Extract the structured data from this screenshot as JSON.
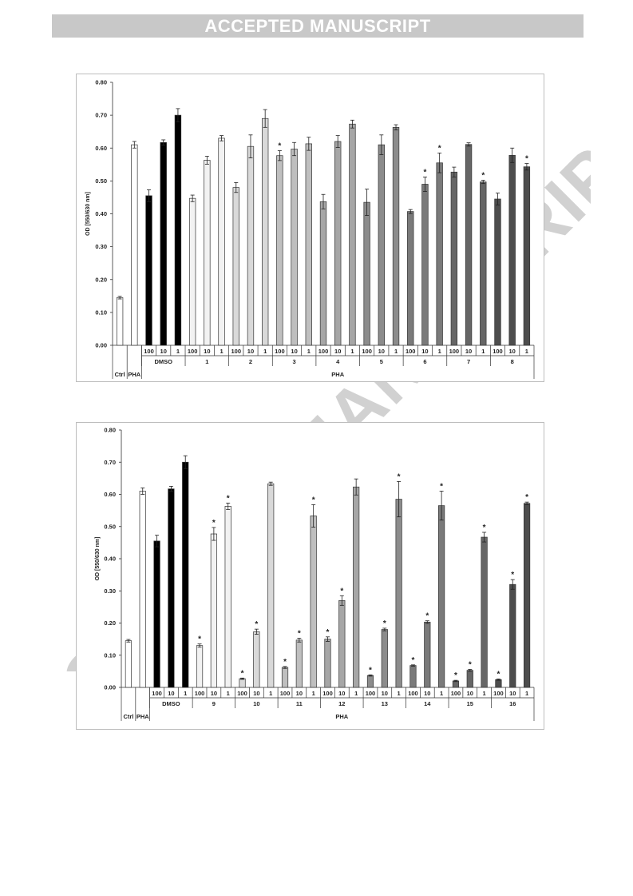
{
  "header": {
    "banner": "ACCEPTED MANUSCRIPT"
  },
  "watermark": "ACCEPTED MANUSCRIPT",
  "chart_data": [
    {
      "type": "bar",
      "ylabel": "OD [550/630 nm]",
      "ylim": [
        0,
        0.8
      ],
      "yticks": [
        "0.00",
        "0.10",
        "0.20",
        "0.30",
        "0.40",
        "0.50",
        "0.60",
        "0.70",
        "0.80"
      ],
      "group_labels": [
        "DMSO",
        "1",
        "2",
        "3",
        "4",
        "5",
        "6",
        "7",
        "8"
      ],
      "super_label": "PHA",
      "ctrl_labels": [
        "Ctrl",
        "PHA"
      ],
      "bars": [
        {
          "group": "Ctrl",
          "dose": "",
          "value": 0.145,
          "err": 0.004,
          "fill": "#ffffff",
          "sig": false
        },
        {
          "group": "PHA",
          "dose": "",
          "value": 0.61,
          "err": 0.01,
          "fill": "#ffffff",
          "sig": false
        },
        {
          "group": "DMSO",
          "dose": "100",
          "value": 0.455,
          "err": 0.018,
          "fill": "#000000",
          "sig": false
        },
        {
          "group": "DMSO",
          "dose": "10",
          "value": 0.617,
          "err": 0.008,
          "fill": "#000000",
          "sig": false
        },
        {
          "group": "DMSO",
          "dose": "1",
          "value": 0.7,
          "err": 0.02,
          "fill": "#000000",
          "sig": false
        },
        {
          "group": "1",
          "dose": "100",
          "value": 0.447,
          "err": 0.01,
          "fill": "#f2f2f2",
          "sig": false
        },
        {
          "group": "1",
          "dose": "10",
          "value": 0.563,
          "err": 0.012,
          "fill": "#f2f2f2",
          "sig": false
        },
        {
          "group": "1",
          "dose": "1",
          "value": 0.63,
          "err": 0.008,
          "fill": "#f2f2f2",
          "sig": false
        },
        {
          "group": "2",
          "dose": "100",
          "value": 0.48,
          "err": 0.015,
          "fill": "#d9d9d9",
          "sig": false
        },
        {
          "group": "2",
          "dose": "10",
          "value": 0.605,
          "err": 0.035,
          "fill": "#d9d9d9",
          "sig": false
        },
        {
          "group": "2",
          "dose": "1",
          "value": 0.69,
          "err": 0.027,
          "fill": "#d9d9d9",
          "sig": false
        },
        {
          "group": "3",
          "dose": "100",
          "value": 0.577,
          "err": 0.015,
          "fill": "#bfbfbf",
          "sig": true
        },
        {
          "group": "3",
          "dose": "10",
          "value": 0.597,
          "err": 0.02,
          "fill": "#bfbfbf",
          "sig": false
        },
        {
          "group": "3",
          "dose": "1",
          "value": 0.613,
          "err": 0.02,
          "fill": "#bfbfbf",
          "sig": false
        },
        {
          "group": "4",
          "dose": "100",
          "value": 0.437,
          "err": 0.022,
          "fill": "#a6a6a6",
          "sig": false
        },
        {
          "group": "4",
          "dose": "10",
          "value": 0.62,
          "err": 0.018,
          "fill": "#a6a6a6",
          "sig": false
        },
        {
          "group": "4",
          "dose": "1",
          "value": 0.673,
          "err": 0.012,
          "fill": "#a6a6a6",
          "sig": false
        },
        {
          "group": "5",
          "dose": "100",
          "value": 0.435,
          "err": 0.04,
          "fill": "#8c8c8c",
          "sig": false
        },
        {
          "group": "5",
          "dose": "10",
          "value": 0.61,
          "err": 0.03,
          "fill": "#8c8c8c",
          "sig": false
        },
        {
          "group": "5",
          "dose": "1",
          "value": 0.663,
          "err": 0.008,
          "fill": "#8c8c8c",
          "sig": false
        },
        {
          "group": "6",
          "dose": "100",
          "value": 0.407,
          "err": 0.006,
          "fill": "#7a7a7a",
          "sig": false
        },
        {
          "group": "6",
          "dose": "10",
          "value": 0.49,
          "err": 0.022,
          "fill": "#7a7a7a",
          "sig": true
        },
        {
          "group": "6",
          "dose": "1",
          "value": 0.555,
          "err": 0.03,
          "fill": "#7a7a7a",
          "sig": true
        },
        {
          "group": "7",
          "dose": "100",
          "value": 0.527,
          "err": 0.015,
          "fill": "#666666",
          "sig": false
        },
        {
          "group": "7",
          "dose": "10",
          "value": 0.611,
          "err": 0.005,
          "fill": "#666666",
          "sig": false
        },
        {
          "group": "7",
          "dose": "1",
          "value": 0.497,
          "err": 0.005,
          "fill": "#666666",
          "sig": true
        },
        {
          "group": "8",
          "dose": "100",
          "value": 0.445,
          "err": 0.018,
          "fill": "#4d4d4d",
          "sig": false
        },
        {
          "group": "8",
          "dose": "10",
          "value": 0.578,
          "err": 0.022,
          "fill": "#4d4d4d",
          "sig": false
        },
        {
          "group": "8",
          "dose": "1",
          "value": 0.543,
          "err": 0.01,
          "fill": "#4d4d4d",
          "sig": true
        }
      ]
    },
    {
      "type": "bar",
      "ylabel": "OD [550/630 nm]",
      "ylim": [
        0,
        0.8
      ],
      "yticks": [
        "0.00",
        "0.10",
        "0.20",
        "0.30",
        "0.40",
        "0.50",
        "0.60",
        "0.70",
        "0.80"
      ],
      "group_labels": [
        "DMSO",
        "9",
        "10",
        "11",
        "12",
        "13",
        "14",
        "15",
        "16"
      ],
      "super_label": "PHA",
      "ctrl_labels": [
        "Ctrl",
        "PHA"
      ],
      "bars": [
        {
          "group": "Ctrl",
          "dose": "",
          "value": 0.145,
          "err": 0.004,
          "fill": "#ffffff",
          "sig": false
        },
        {
          "group": "PHA",
          "dose": "",
          "value": 0.61,
          "err": 0.01,
          "fill": "#ffffff",
          "sig": false
        },
        {
          "group": "DMSO",
          "dose": "100",
          "value": 0.455,
          "err": 0.018,
          "fill": "#000000",
          "sig": false
        },
        {
          "group": "DMSO",
          "dose": "10",
          "value": 0.617,
          "err": 0.008,
          "fill": "#000000",
          "sig": false
        },
        {
          "group": "DMSO",
          "dose": "1",
          "value": 0.7,
          "err": 0.02,
          "fill": "#000000",
          "sig": false
        },
        {
          "group": "9",
          "dose": "100",
          "value": 0.13,
          "err": 0.005,
          "fill": "#f2f2f2",
          "sig": true
        },
        {
          "group": "9",
          "dose": "10",
          "value": 0.477,
          "err": 0.02,
          "fill": "#f2f2f2",
          "sig": true
        },
        {
          "group": "9",
          "dose": "1",
          "value": 0.563,
          "err": 0.01,
          "fill": "#f2f2f2",
          "sig": true
        },
        {
          "group": "10",
          "dose": "100",
          "value": 0.027,
          "err": 0.002,
          "fill": "#d9d9d9",
          "sig": true
        },
        {
          "group": "10",
          "dose": "10",
          "value": 0.173,
          "err": 0.008,
          "fill": "#d9d9d9",
          "sig": true
        },
        {
          "group": "10",
          "dose": "1",
          "value": 0.633,
          "err": 0.005,
          "fill": "#d9d9d9",
          "sig": false
        },
        {
          "group": "11",
          "dose": "100",
          "value": 0.062,
          "err": 0.003,
          "fill": "#bfbfbf",
          "sig": true
        },
        {
          "group": "11",
          "dose": "10",
          "value": 0.147,
          "err": 0.006,
          "fill": "#bfbfbf",
          "sig": true
        },
        {
          "group": "11",
          "dose": "1",
          "value": 0.533,
          "err": 0.035,
          "fill": "#bfbfbf",
          "sig": true
        },
        {
          "group": "12",
          "dose": "100",
          "value": 0.15,
          "err": 0.007,
          "fill": "#a6a6a6",
          "sig": true
        },
        {
          "group": "12",
          "dose": "10",
          "value": 0.27,
          "err": 0.015,
          "fill": "#a6a6a6",
          "sig": true
        },
        {
          "group": "12",
          "dose": "1",
          "value": 0.623,
          "err": 0.025,
          "fill": "#a6a6a6",
          "sig": false
        },
        {
          "group": "13",
          "dose": "100",
          "value": 0.037,
          "err": 0.002,
          "fill": "#8c8c8c",
          "sig": true
        },
        {
          "group": "13",
          "dose": "10",
          "value": 0.18,
          "err": 0.004,
          "fill": "#8c8c8c",
          "sig": true
        },
        {
          "group": "13",
          "dose": "1",
          "value": 0.585,
          "err": 0.055,
          "fill": "#8c8c8c",
          "sig": true
        },
        {
          "group": "14",
          "dose": "100",
          "value": 0.068,
          "err": 0.002,
          "fill": "#7a7a7a",
          "sig": true
        },
        {
          "group": "14",
          "dose": "10",
          "value": 0.203,
          "err": 0.004,
          "fill": "#7a7a7a",
          "sig": true
        },
        {
          "group": "14",
          "dose": "1",
          "value": 0.565,
          "err": 0.045,
          "fill": "#7a7a7a",
          "sig": true
        },
        {
          "group": "15",
          "dose": "100",
          "value": 0.02,
          "err": 0.002,
          "fill": "#666666",
          "sig": true
        },
        {
          "group": "15",
          "dose": "10",
          "value": 0.053,
          "err": 0.003,
          "fill": "#666666",
          "sig": true
        },
        {
          "group": "15",
          "dose": "1",
          "value": 0.467,
          "err": 0.015,
          "fill": "#666666",
          "sig": true
        },
        {
          "group": "16",
          "dose": "100",
          "value": 0.024,
          "err": 0.002,
          "fill": "#4d4d4d",
          "sig": true
        },
        {
          "group": "16",
          "dose": "10",
          "value": 0.32,
          "err": 0.015,
          "fill": "#4d4d4d",
          "sig": true
        },
        {
          "group": "16",
          "dose": "1",
          "value": 0.572,
          "err": 0.004,
          "fill": "#4d4d4d",
          "sig": true
        }
      ]
    }
  ]
}
